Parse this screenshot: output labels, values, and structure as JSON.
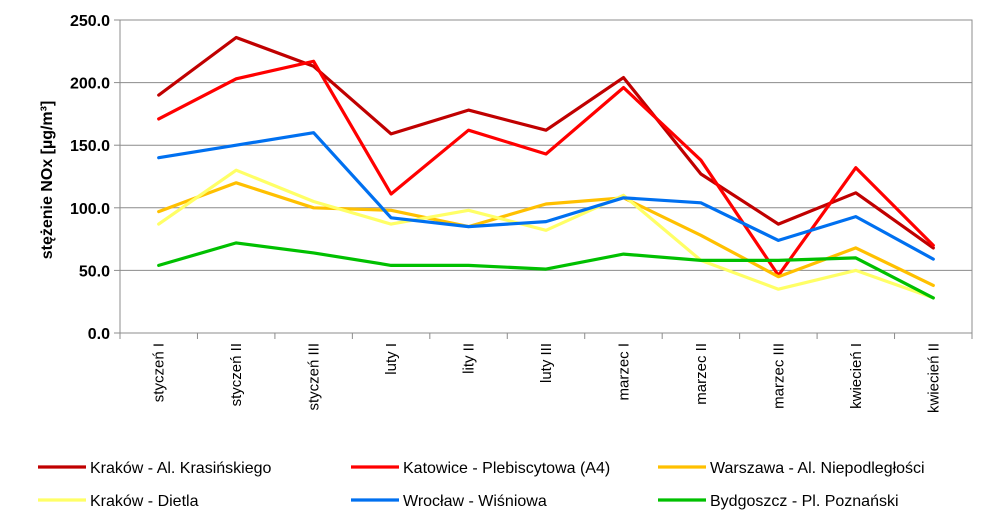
{
  "chart_data": {
    "type": "line",
    "title": "",
    "xlabel": "",
    "ylabel": "stężenie NOx [µg/m³]",
    "ylim": [
      0,
      250
    ],
    "yticks": [
      "0.0",
      "50.0",
      "100.0",
      "150.0",
      "200.0",
      "250.0"
    ],
    "grid": true,
    "legend_position": "bottom",
    "categories": [
      "styczeń I",
      "styczeń II",
      "styczeń III",
      "luty I",
      "lity II",
      "luty III",
      "marzec I",
      "marzec II",
      "marzec III",
      "kwiecień I",
      "kwiecień II"
    ],
    "series": [
      {
        "name": "Kraków - Al. Krasińskiego",
        "color": "#c00000",
        "values": [
          190,
          236,
          213,
          159,
          178,
          162,
          204,
          127,
          87,
          112,
          68
        ]
      },
      {
        "name": "Katowice - Plebiscytowa (A4)",
        "color": "#ff0000",
        "values": [
          171,
          203,
          217,
          111,
          162,
          143,
          196,
          138,
          46,
          132,
          70
        ]
      },
      {
        "name": "Warszawa - Al. Niepodległości",
        "color": "#ffc000",
        "values": [
          97,
          120,
          100,
          98,
          85,
          103,
          108,
          78,
          45,
          68,
          38
        ]
      },
      {
        "name": "Kraków - Dietla",
        "color": "#ffff66",
        "values": [
          87,
          130,
          105,
          87,
          98,
          82,
          110,
          58,
          35,
          50,
          28
        ]
      },
      {
        "name": "Wrocław - Wiśniowa",
        "color": "#0070f0",
        "values": [
          140,
          150,
          160,
          92,
          85,
          89,
          108,
          104,
          74,
          93,
          59
        ]
      },
      {
        "name": "Bydgoszcz - Pl. Poznański",
        "color": "#00c000",
        "values": [
          54,
          72,
          64,
          54,
          54,
          51,
          63,
          58,
          58,
          60,
          28
        ]
      }
    ]
  }
}
